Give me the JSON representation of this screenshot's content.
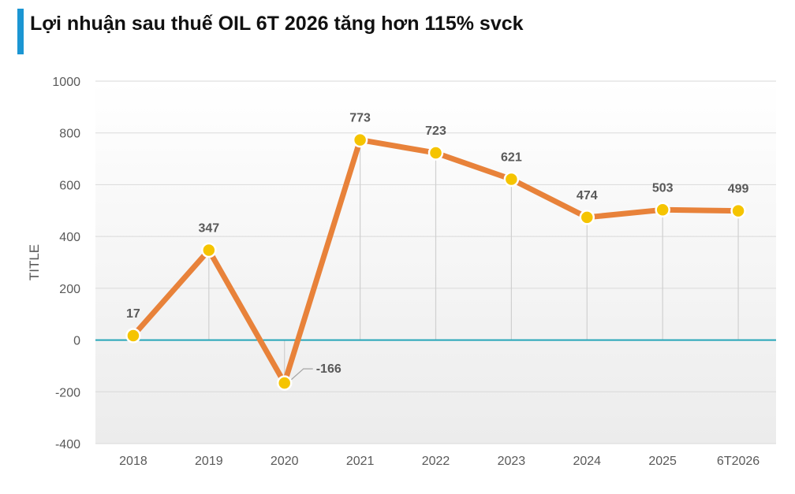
{
  "header": {
    "title": "Lợi nhuận sau thuế OIL 6T 2026 tăng hơn 115% svck"
  },
  "chart_data": {
    "type": "line",
    "title": "Lợi nhuận sau thuế OIL 6T 2026 tăng hơn 115% svck",
    "xlabel": "",
    "ylabel": "TITLE",
    "categories": [
      "2018",
      "2019",
      "2020",
      "2021",
      "2022",
      "2023",
      "2024",
      "2025",
      "6T2026"
    ],
    "series": [
      {
        "values": [
          17,
          347,
          -166,
          773,
          723,
          621,
          474,
          503,
          499
        ]
      }
    ],
    "data_labels": [
      "17",
      "347",
      "-166",
      "773",
      "723",
      "621",
      "474",
      "503",
      "499"
    ],
    "yticks": [
      "1000",
      "800",
      "600",
      "400",
      "200",
      "0",
      "-200",
      "-400"
    ],
    "ylim": [
      -400,
      1000
    ],
    "grid": true,
    "legend": "none",
    "colors": {
      "line": "#e8823a",
      "marker": "#f5c400",
      "zero_line": "#26a6b8",
      "plot_bg": "#f2f2f2",
      "accent_bar": "#1b96d3"
    }
  }
}
